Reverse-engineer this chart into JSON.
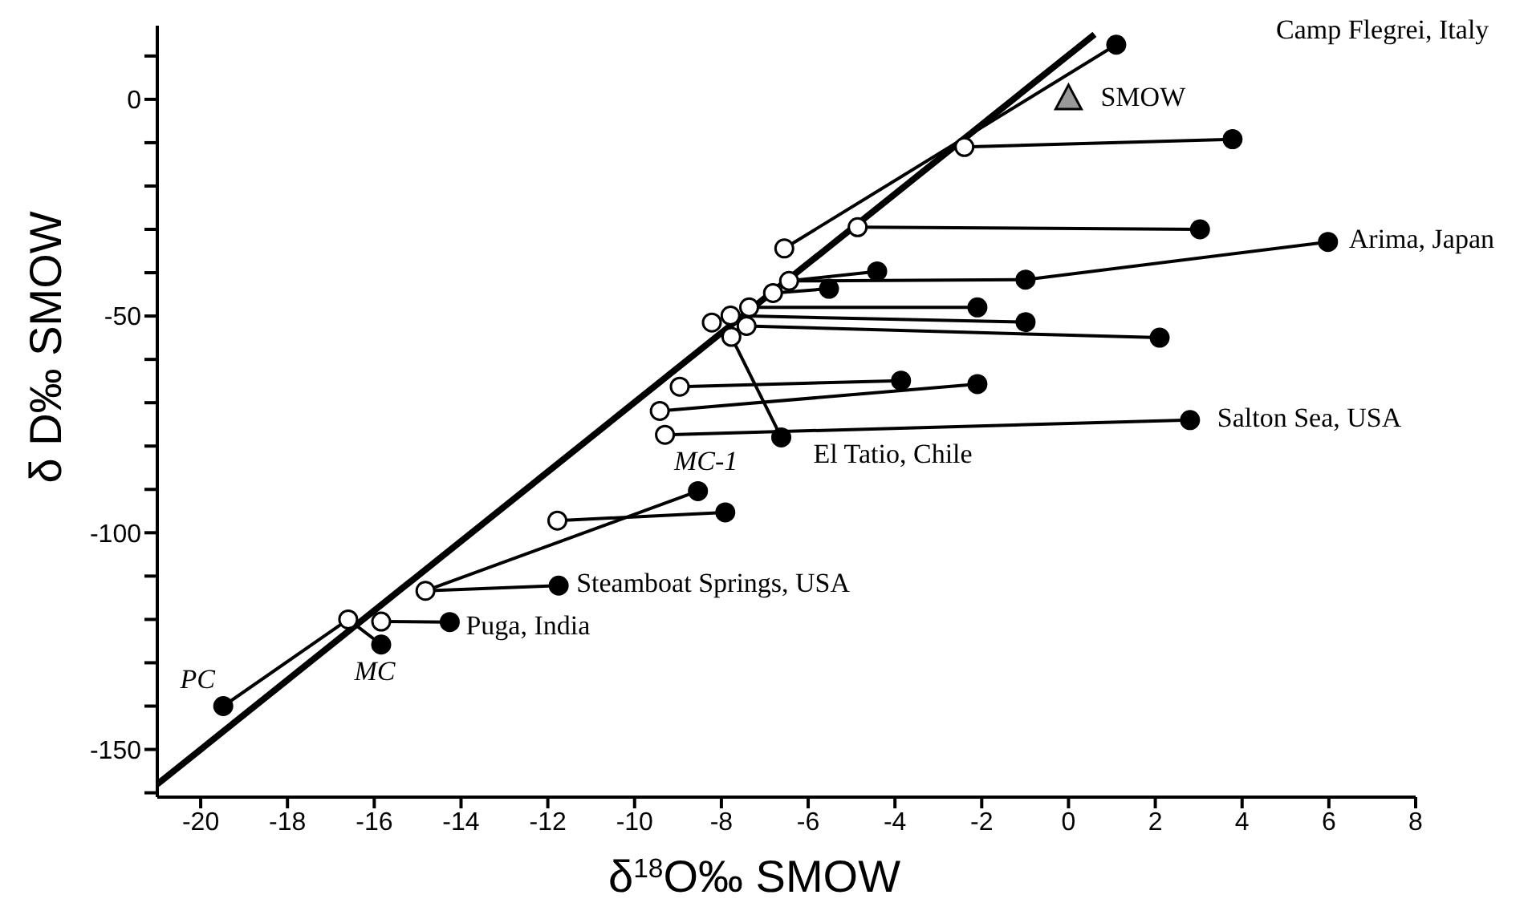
{
  "chart_data": {
    "type": "scatter",
    "xlabel": "δ$^{18}$O‰ SMOW",
    "ylabel": "δ D‰ SMOW",
    "xlim": [
      -21,
      8
    ],
    "ylim": [
      -161,
      17
    ],
    "xticks": [
      -20,
      -18,
      -16,
      -14,
      -12,
      -10,
      -8,
      -6,
      -4,
      -2,
      0,
      2,
      4,
      6,
      8
    ],
    "yticks": [
      {
        "value": 10,
        "label": null
      },
      0,
      {
        "value": -10,
        "label": null
      },
      {
        "value": -20,
        "label": null
      },
      {
        "value": -30,
        "label": null
      },
      {
        "value": -40,
        "label": null
      },
      -50,
      {
        "value": -60,
        "label": null
      },
      {
        "value": -70,
        "label": null
      },
      {
        "value": -80,
        "label": null
      },
      {
        "value": -90,
        "label": null
      },
      -100,
      {
        "value": -110,
        "label": null
      },
      {
        "value": -120,
        "label": null
      },
      {
        "value": -130,
        "label": null
      },
      {
        "value": -140,
        "label": null
      },
      -150,
      {
        "value": -160,
        "label": null
      }
    ],
    "grid": false,
    "legend": false,
    "series": [
      {
        "type": "line",
        "color": "#000000",
        "marker": "none",
        "x": [
          -21,
          0.6
        ],
        "values": [
          -158,
          15
        ]
      },
      {
        "type": "line",
        "color": "#000000",
        "marker": "none",
        "x": [
          -6.55,
          1.1
        ],
        "values": [
          -34.4,
          12.6
        ]
      },
      {
        "type": "line",
        "color": "#000000",
        "marker": "none",
        "x": [
          -2.4,
          3.78
        ],
        "values": [
          -11,
          -9.2
        ]
      },
      {
        "type": "line",
        "color": "#000000",
        "marker": "none",
        "x": [
          -4.86,
          3.03
        ],
        "values": [
          -29.5,
          -30
        ]
      },
      {
        "type": "line",
        "color": "#000000",
        "marker": "none",
        "x": [
          -6.44,
          -4.41
        ],
        "values": [
          -41.9,
          -39.7
        ]
      },
      {
        "type": "line",
        "color": "#000000",
        "marker": "none",
        "x": [
          -6.44,
          -0.99,
          5.98
        ],
        "values": [
          -41.9,
          -41.6,
          -32.9
        ]
      },
      {
        "type": "line",
        "color": "#000000",
        "marker": "none",
        "x": [
          -6.81,
          -5.52
        ],
        "values": [
          -44.7,
          -43.7
        ]
      },
      {
        "type": "line",
        "color": "#000000",
        "marker": "none",
        "x": [
          -7.36,
          -2.1
        ],
        "values": [
          -48,
          -48
        ]
      },
      {
        "type": "line",
        "color": "#000000",
        "marker": "none",
        "x": [
          -7.79,
          -0.99
        ],
        "values": [
          -49.9,
          -51.4
        ]
      },
      {
        "type": "line",
        "color": "#000000",
        "marker": "none",
        "x": [
          -7.42,
          2.1
        ],
        "values": [
          -52.3,
          -55
        ]
      },
      {
        "type": "line",
        "color": "#000000",
        "marker": "none",
        "x": [
          -7.77,
          -6.62
        ],
        "values": [
          -54.8,
          -78
        ]
      },
      {
        "type": "line",
        "color": "#000000",
        "marker": "none",
        "x": [
          -8.96,
          -3.86
        ],
        "values": [
          -66.3,
          -64.9
        ]
      },
      {
        "type": "line",
        "color": "#000000",
        "marker": "none",
        "x": [
          -9.42,
          -2.1
        ],
        "values": [
          -71.9,
          -65.7
        ]
      },
      {
        "type": "line",
        "color": "#000000",
        "marker": "none",
        "x": [
          -9.3,
          2.8
        ],
        "values": [
          -77.4,
          -74
        ]
      },
      {
        "type": "line",
        "color": "#000000",
        "marker": "none",
        "x": [
          -14.82,
          -8.54
        ],
        "values": [
          -113.4,
          -90.4
        ]
      },
      {
        "type": "line",
        "color": "#000000",
        "marker": "none",
        "x": [
          -11.78,
          -7.91
        ],
        "values": [
          -97.2,
          -95.3
        ]
      },
      {
        "type": "line",
        "color": "#000000",
        "marker": "none",
        "x": [
          -14.82,
          -11.75
        ],
        "values": [
          -113.4,
          -112.2
        ]
      },
      {
        "type": "line",
        "color": "#000000",
        "marker": "none",
        "x": [
          -19.48,
          -16.6,
          -15.84
        ],
        "values": [
          -140,
          -120,
          -125.8
        ]
      },
      {
        "type": "line",
        "color": "#000000",
        "marker": "none",
        "x": [
          -15.84,
          -14.26
        ],
        "values": [
          -120.5,
          -120.6
        ]
      },
      {
        "type": "scatter",
        "color": "#ffffff",
        "marker": "circle",
        "x": [
          -8.22,
          -7.79,
          -7.36,
          -6.81,
          -6.44,
          -7.42,
          -7.77,
          -6.55,
          -2.4,
          -4.86,
          -8.96,
          -9.42,
          -9.3,
          -11.78,
          -14.82,
          -16.6,
          -15.84
        ],
        "values": [
          -51.5,
          -49.9,
          -48,
          -44.7,
          -41.9,
          -52.3,
          -54.8,
          -34.4,
          -11,
          -29.5,
          -66.3,
          -71.9,
          -77.4,
          -97.2,
          -113.4,
          -120,
          -120.5
        ]
      },
      {
        "type": "scatter",
        "color": "#000000",
        "marker": "circle",
        "x": [
          1.1,
          3.78,
          3.03,
          5.98,
          -4.41,
          -5.52,
          -0.99,
          -2.1,
          -0.99,
          2.1,
          -6.62,
          -3.86,
          -2.1,
          2.8,
          -8.54,
          -7.91,
          -11.75,
          -14.26,
          -15.84,
          -19.48
        ],
        "values": [
          12.6,
          -9.2,
          -30,
          -32.9,
          -39.7,
          -43.7,
          -41.6,
          -48,
          -51.4,
          -55,
          -78,
          -64.9,
          -65.7,
          -74,
          -90.4,
          -95.3,
          -112.2,
          -120.6,
          -125.8,
          -140
        ]
      },
      {
        "type": "scatter",
        "color": "#999999",
        "marker": "triangle",
        "x": [
          0
        ],
        "values": [
          0
        ]
      }
    ],
    "annotations": [
      "Camp Flegrei, Italy",
      {
        "text": "SMOW",
        "x": 0,
        "y": 0
      },
      {
        "text": "Arima, Japan",
        "x": 5.98,
        "y": -32.9
      },
      {
        "text": "Salton Sea, USA",
        "x": 2.8,
        "y": -74
      },
      {
        "text": "El Tatio, Chile",
        "x": -6.62,
        "y": -78
      },
      {
        "text": "MC-1",
        "x": -8.54,
        "y": -90.4
      },
      {
        "text": "Steamboat Springs, USA",
        "x": -11.75,
        "y": -112.2
      },
      {
        "text": "Puga, India",
        "x": -14.26,
        "y": -120.6
      },
      {
        "text": "MC",
        "x": -15.84,
        "y": -125.8
      },
      {
        "text": "PC",
        "x": -19.48,
        "y": -140
      }
    ]
  }
}
